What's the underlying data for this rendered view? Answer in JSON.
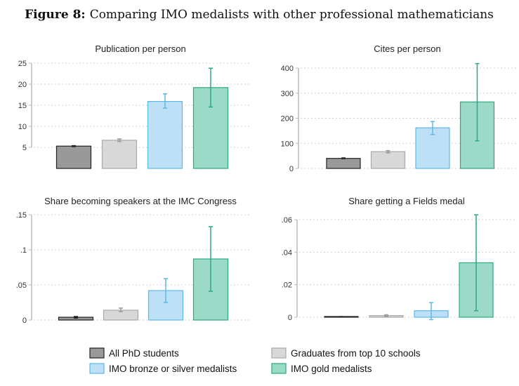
{
  "figure": {
    "label": "Figure 8:",
    "title": "Comparing IMO medalists with other professional mathematicians"
  },
  "colors": {
    "phd": {
      "fill": "#999999",
      "stroke": "#222222"
    },
    "top10": {
      "fill": "#d8d8d8",
      "stroke": "#aaaaaa"
    },
    "bronze": {
      "fill": "#bde0f6",
      "stroke": "#5db8e8"
    },
    "gold": {
      "fill": "#9bdac7",
      "stroke": "#2aaa82"
    }
  },
  "legend": [
    "All PhD students",
    "Graduates from top 10 schools",
    "IMO bronze or silver medalists",
    "IMO gold medalists"
  ],
  "chart_data": [
    {
      "type": "bar",
      "title": "Publication per person",
      "ylim": [
        0,
        25
      ],
      "yticks": [
        5,
        10,
        15,
        20,
        25
      ],
      "ytick_labels": [
        "5",
        "10",
        "15",
        "20",
        "25"
      ],
      "grid": true,
      "categories": [
        "All PhD students",
        "Graduates from top 10 schools",
        "IMO bronze or silver medalists",
        "IMO gold medalists"
      ],
      "values": [
        5.3,
        6.7,
        15.9,
        19.2
      ],
      "ci_low": [
        5.2,
        6.4,
        14.3,
        14.6
      ],
      "ci_high": [
        5.4,
        7.0,
        17.7,
        23.8
      ]
    },
    {
      "type": "bar",
      "title": "Cites per person",
      "ylim": [
        0,
        400
      ],
      "yticks": [
        0,
        100,
        200,
        300,
        400
      ],
      "ytick_labels": [
        "0",
        "100",
        "200",
        "300",
        "400"
      ],
      "grid": true,
      "categories": [
        "All PhD students",
        "Graduates from top 10 schools",
        "IMO bronze or silver medalists",
        "IMO gold medalists"
      ],
      "values": [
        40,
        67,
        162,
        265
      ],
      "ci_low": [
        39,
        62,
        135,
        110
      ],
      "ci_high": [
        42,
        71,
        187,
        418
      ]
    },
    {
      "type": "bar",
      "title": "Share becoming speakers at the IMC Congress",
      "ylim": [
        0,
        0.15
      ],
      "yticks": [
        0,
        0.05,
        0.1,
        0.15
      ],
      "ytick_labels": [
        "0",
        ".05",
        ".1",
        ".15"
      ],
      "grid": true,
      "categories": [
        "All PhD students",
        "Graduates from top 10 schools",
        "IMO bronze or silver medalists",
        "IMO gold medalists"
      ],
      "values": [
        0.004,
        0.014,
        0.042,
        0.087
      ],
      "ci_low": [
        0.0028,
        0.012,
        0.025,
        0.041
      ],
      "ci_high": [
        0.005,
        0.017,
        0.059,
        0.133
      ]
    },
    {
      "type": "bar",
      "title": "Share getting a Fields medal",
      "ylim": [
        0,
        0.06
      ],
      "yticks": [
        0,
        0.02,
        0.04,
        0.06
      ],
      "ytick_labels": [
        "0",
        ".02",
        ".04",
        ".06"
      ],
      "grid": true,
      "categories": [
        "All PhD students",
        "Graduates from top 10 schools",
        "IMO bronze or silver medalists",
        "IMO gold medalists"
      ],
      "values": [
        0.0003,
        0.001,
        0.004,
        0.0335
      ],
      "ci_low": [
        0.0002,
        0.0005,
        -0.0015,
        0.004
      ],
      "ci_high": [
        0.0004,
        0.0015,
        0.009,
        0.063
      ]
    }
  ]
}
